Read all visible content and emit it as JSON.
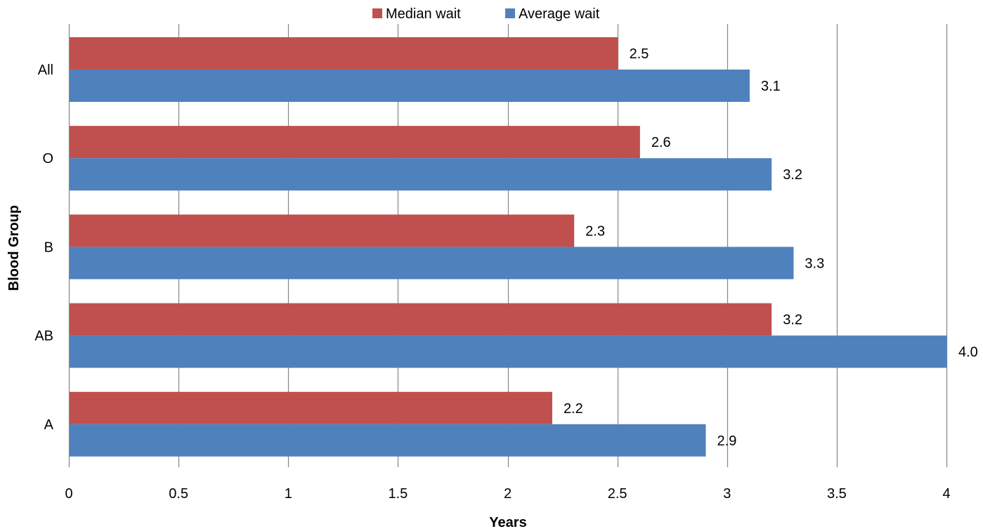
{
  "chart_data": {
    "type": "bar",
    "orientation": "horizontal",
    "title": "",
    "xlabel": "Years",
    "ylabel": "Blood Group",
    "categories": [
      "All",
      "O",
      "B",
      "AB",
      "A"
    ],
    "series": [
      {
        "name": "Median wait",
        "color": "#C0504D",
        "values": [
          2.5,
          2.6,
          2.3,
          3.2,
          2.2
        ],
        "labels": [
          "2.5",
          "2.6",
          "2.3",
          "3.2",
          "2.2"
        ]
      },
      {
        "name": "Average wait",
        "color": "#4F81BD",
        "values": [
          3.1,
          3.2,
          3.3,
          4.0,
          2.9
        ],
        "labels": [
          "3.1",
          "3.2",
          "3.3",
          "4.0",
          "2.9"
        ]
      }
    ],
    "xlim": [
      0,
      4
    ],
    "xticks": [
      0,
      0.5,
      1,
      1.5,
      2,
      2.5,
      3,
      3.5,
      4
    ],
    "xtick_labels": [
      "0",
      "0.5",
      "1",
      "1.5",
      "2",
      "2.5",
      "3",
      "3.5",
      "4"
    ],
    "grid": true,
    "legend_position": "top"
  }
}
